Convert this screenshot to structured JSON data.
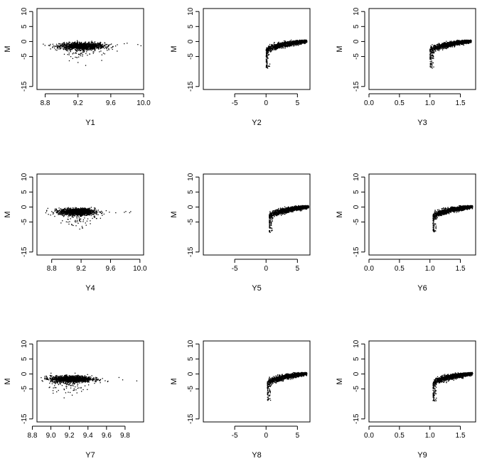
{
  "chart_data": [
    {
      "type": "scatter",
      "xlabel": "Y1",
      "ylabel": "M",
      "xlim": [
        8.7,
        10.0
      ],
      "ylim": [
        -16,
        11
      ],
      "xticks": [
        "8.8",
        "9.2",
        "9.6",
        "10.0"
      ],
      "xtick_values": [
        8.8,
        9.2,
        9.6,
        10.0
      ],
      "yticks": [
        "-15",
        "-5",
        "0",
        "5",
        "10"
      ],
      "ytick_values": [
        -15,
        -5,
        0,
        5,
        10
      ],
      "shape": "flat",
      "x_center": 9.25,
      "x_spread": 0.16,
      "y_level": -1.5,
      "x_range": [
        8.75,
        9.97
      ],
      "y_min": -8.5
    },
    {
      "type": "scatter",
      "xlabel": "Y2",
      "ylabel": "M",
      "xlim": [
        -10,
        7
      ],
      "ylim": [
        -16,
        11
      ],
      "xticks": [
        "-5",
        "0",
        "5"
      ],
      "xtick_values": [
        -5,
        0,
        5
      ],
      "yticks": [
        "-15",
        "-5",
        "0",
        "5",
        "10"
      ],
      "ytick_values": [
        -15,
        -5,
        0,
        5,
        10
      ],
      "shape": "curve",
      "x_range": [
        0,
        6.5
      ],
      "y_range": [
        -9.0,
        0.5
      ]
    },
    {
      "type": "scatter",
      "xlabel": "Y3",
      "ylabel": "M",
      "xlim": [
        0,
        1.75
      ],
      "ylim": [
        -16,
        11
      ],
      "xticks": [
        "0.0",
        "0.5",
        "1.0",
        "1.5"
      ],
      "xtick_values": [
        0.0,
        0.5,
        1.0,
        1.5
      ],
      "yticks": [
        "-15",
        "-5",
        "0",
        "5",
        "10"
      ],
      "ytick_values": [
        -15,
        -5,
        0,
        5,
        10
      ],
      "shape": "curve",
      "x_range": [
        1.0,
        1.68
      ],
      "y_range": [
        -9.0,
        0.5
      ]
    },
    {
      "type": "scatter",
      "xlabel": "Y4",
      "ylabel": "M",
      "xlim": [
        8.6,
        10.05
      ],
      "ylim": [
        -16,
        11
      ],
      "xticks": [
        "8.8",
        "9.2",
        "9.6",
        "10.0"
      ],
      "xtick_values": [
        8.8,
        9.2,
        9.6,
        10.0
      ],
      "yticks": [
        "-15",
        "-5",
        "0",
        "5",
        "10"
      ],
      "ytick_values": [
        -15,
        -5,
        0,
        5,
        10
      ],
      "shape": "flat",
      "x_center": 9.15,
      "x_spread": 0.14,
      "y_level": -1.6,
      "x_range": [
        8.7,
        10.0
      ],
      "y_min": -8.0
    },
    {
      "type": "scatter",
      "xlabel": "Y5",
      "ylabel": "M",
      "xlim": [
        -10,
        7
      ],
      "ylim": [
        -16,
        11
      ],
      "xticks": [
        "-5",
        "0",
        "5"
      ],
      "xtick_values": [
        -5,
        0,
        5
      ],
      "yticks": [
        "-15",
        "-5",
        "0",
        "5",
        "10"
      ],
      "ytick_values": [
        -15,
        -5,
        0,
        5,
        10
      ],
      "shape": "curve",
      "x_range": [
        0.5,
        6.8
      ],
      "y_range": [
        -8.5,
        0.5
      ]
    },
    {
      "type": "scatter",
      "xlabel": "Y6",
      "ylabel": "M",
      "xlim": [
        0,
        1.75
      ],
      "ylim": [
        -16,
        11
      ],
      "xticks": [
        "0.0",
        "0.5",
        "1.0",
        "1.5"
      ],
      "xtick_values": [
        0.0,
        0.5,
        1.0,
        1.5
      ],
      "yticks": [
        "-15",
        "-5",
        "0",
        "5",
        "10"
      ],
      "ytick_values": [
        -15,
        -5,
        0,
        5,
        10
      ],
      "shape": "curve",
      "x_range": [
        1.05,
        1.7
      ],
      "y_range": [
        -8.5,
        0.5
      ]
    },
    {
      "type": "scatter",
      "xlabel": "Y7",
      "ylabel": "M",
      "xlim": [
        8.85,
        10.0
      ],
      "ylim": [
        -16,
        11
      ],
      "xticks": [
        "8.8",
        "9.0",
        "9.2",
        "9.4",
        "9.6",
        "9.8"
      ],
      "xtick_values": [
        8.8,
        9.0,
        9.2,
        9.4,
        9.6,
        9.8
      ],
      "yticks": [
        "-15",
        "-5",
        "0",
        "5",
        "10"
      ],
      "ytick_values": [
        -15,
        -5,
        0,
        5,
        10
      ],
      "shape": "flat",
      "x_center": 9.22,
      "x_spread": 0.13,
      "y_level": -1.7,
      "x_range": [
        8.88,
        9.95
      ],
      "y_min": -8.0
    },
    {
      "type": "scatter",
      "xlabel": "Y8",
      "ylabel": "M",
      "xlim": [
        -10,
        7
      ],
      "ylim": [
        -16,
        11
      ],
      "xticks": [
        "-5",
        "0",
        "5"
      ],
      "xtick_values": [
        -5,
        0,
        5
      ],
      "yticks": [
        "-15",
        "-5",
        "0",
        "5",
        "10"
      ],
      "ytick_values": [
        -15,
        -5,
        0,
        5,
        10
      ],
      "shape": "curve",
      "x_range": [
        0.2,
        6.5
      ],
      "y_range": [
        -9.0,
        0.5
      ]
    },
    {
      "type": "scatter",
      "xlabel": "Y9",
      "ylabel": "M",
      "xlim": [
        0,
        1.75
      ],
      "ylim": [
        -16,
        11
      ],
      "xticks": [
        "0.0",
        "0.5",
        "1.0",
        "1.5"
      ],
      "xtick_values": [
        0.0,
        0.5,
        1.0,
        1.5
      ],
      "yticks": [
        "-15",
        "-5",
        "0",
        "5",
        "10"
      ],
      "ytick_values": [
        -15,
        -5,
        0,
        5,
        10
      ],
      "shape": "curve",
      "x_range": [
        1.05,
        1.7
      ],
      "y_range": [
        -9.0,
        0.5
      ]
    }
  ],
  "colors": {
    "points": "#000000",
    "axes": "#000000",
    "background": "#ffffff"
  }
}
